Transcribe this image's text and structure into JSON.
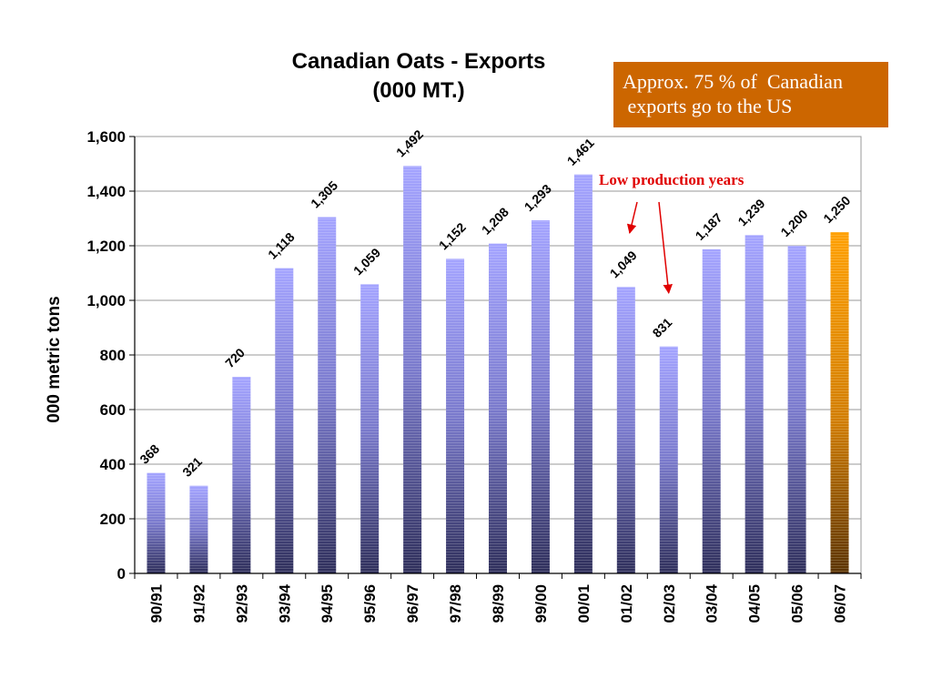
{
  "chart_data": {
    "type": "bar",
    "title_line1": "Canadian Oats - Exports",
    "title_line2": "(000 MT.)",
    "xlabel": "",
    "ylabel": "000 metric tons",
    "ylim": [
      0,
      1600
    ],
    "yticks": [
      0,
      200,
      400,
      600,
      800,
      1000,
      1200,
      1400,
      1600
    ],
    "ytick_labels": [
      "0",
      "200",
      "400",
      "600",
      "800",
      "1,000",
      "1,200",
      "1,400",
      "1,600"
    ],
    "categories": [
      "90/91",
      "91/92",
      "92/93",
      "93/94",
      "94/95",
      "95/96",
      "96/97",
      "97/98",
      "98/99",
      "99/00",
      "00/01",
      "01/02",
      "02/03",
      "03/04",
      "04/05",
      "05/06",
      "06/07"
    ],
    "values": [
      368,
      321,
      720,
      1118,
      1305,
      1059,
      1492,
      1152,
      1208,
      1293,
      1461,
      1049,
      831,
      1187,
      1239,
      1200,
      1250
    ],
    "data_labels": [
      "368",
      "321",
      "720",
      "1,118",
      "1,305",
      "1,059",
      "1,492",
      "1,152",
      "1,208",
      "1,293",
      "1,461",
      "1,049",
      "831",
      "1,187",
      "1,239",
      "1,200",
      "1,250"
    ],
    "grid": true,
    "legend": "none",
    "bar_color": "#a0a0ff",
    "highlight_index": 16,
    "highlight_color": "#ff9900",
    "annotation": {
      "text": "Low production years",
      "color": "#e00000",
      "targets": [
        "01/02",
        "02/03"
      ]
    }
  },
  "callout": {
    "text": "Approx. 75 % of  Canadian\n exports go to the US",
    "color": "#cc6600"
  }
}
